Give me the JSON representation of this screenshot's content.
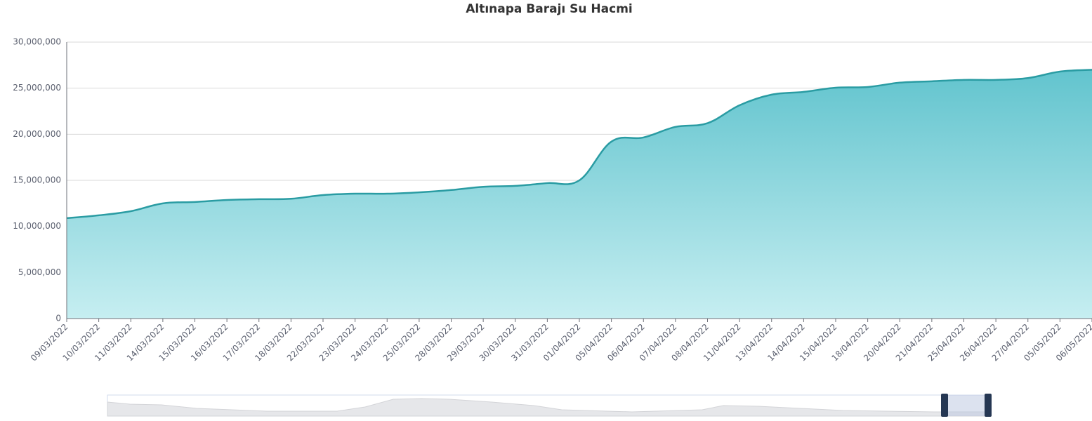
{
  "chart_data": {
    "type": "area",
    "title": "Altınapa Barajı Su Hacmi",
    "categories": [
      "09/03/2022",
      "10/03/2022",
      "11/03/2022",
      "14/03/2022",
      "15/03/2022",
      "16/03/2022",
      "17/03/2022",
      "18/03/2022",
      "22/03/2022",
      "23/03/2022",
      "24/03/2022",
      "25/03/2022",
      "28/03/2022",
      "29/03/2022",
      "30/03/2022",
      "31/03/2022",
      "01/04/2022",
      "05/04/2022",
      "06/04/2022",
      "07/04/2022",
      "08/04/2022",
      "11/04/2022",
      "13/04/2022",
      "14/04/2022",
      "15/04/2022",
      "18/04/2022",
      "20/04/2022",
      "21/04/2022",
      "25/04/2022",
      "26/04/2022",
      "27/04/2022",
      "05/05/2022",
      "06/05/2022"
    ],
    "series": [
      {
        "color": "#2a9ca3",
        "values": [
          10900000,
          11200000,
          11650000,
          12500000,
          12650000,
          12870000,
          12950000,
          13000000,
          13400000,
          13550000,
          13550000,
          13700000,
          13950000,
          14300000,
          14400000,
          14700000,
          15000000,
          19200000,
          19650000,
          20800000,
          21200000,
          23150000,
          24300000,
          24600000,
          25050000,
          25130000,
          25600000,
          25750000,
          25900000,
          25900000,
          26100000,
          26800000,
          27000000
        ]
      }
    ],
    "ylim": [
      0,
      30000000
    ],
    "yticks": [
      0,
      {
        "value": 5000000,
        "label": "5,000,000"
      },
      {
        "value": 10000000,
        "label": "10,000,000"
      },
      {
        "value": 15000000,
        "label": "15,000,000"
      },
      {
        "value": 20000000,
        "label": "20,000,000"
      },
      {
        "value": 25000000,
        "label": "25,000,000"
      },
      {
        "value": 30000000,
        "label": "30,000,000"
      }
    ],
    "grid": true
  }
}
